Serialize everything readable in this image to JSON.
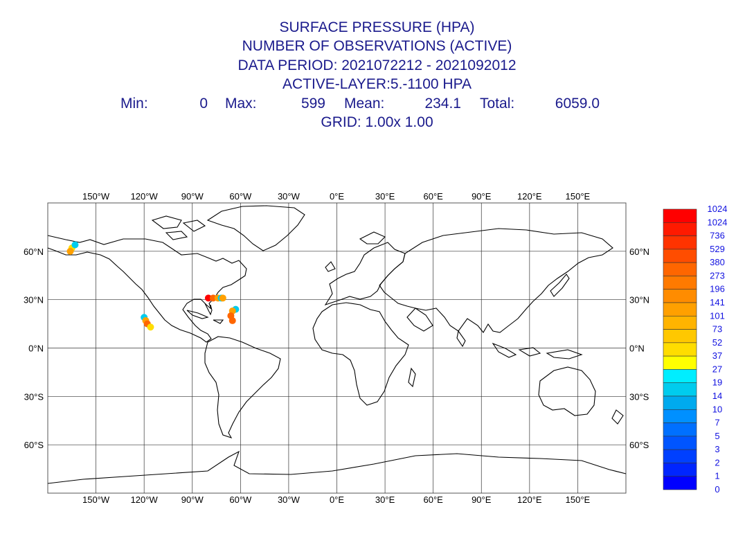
{
  "title": {
    "line1": "SURFACE PRESSURE (HPA)",
    "line2": "NUMBER OF OBSERVATIONS (ACTIVE)",
    "line3": "DATA PERIOD: 2021072212 - 2021092012",
    "line4": "ACTIVE-LAYER:5.-1100 HPA",
    "grid": "GRID:  1.00x  1.00"
  },
  "stats": {
    "min_label": "Min:",
    "min_value": "0",
    "max_label": "Max:",
    "max_value": "599",
    "mean_label": "Mean:",
    "mean_value": "234.1",
    "total_label": "Total:",
    "total_value": "6059.0"
  },
  "map": {
    "lon_labels": [
      "150°W",
      "120°W",
      "90°W",
      "60°W",
      "30°W",
      "0°E",
      "30°E",
      "60°E",
      "90°E",
      "120°E",
      "150°E"
    ],
    "lon_values": [
      -150,
      -120,
      -90,
      -60,
      -30,
      0,
      30,
      60,
      90,
      120,
      150
    ],
    "lat_labels": [
      "60°N",
      "30°N",
      "0°N",
      "30°S",
      "60°S"
    ],
    "lat_values": [
      60,
      30,
      0,
      -30,
      -60
    ],
    "lon_range": [
      -180,
      180
    ],
    "lat_range": [
      -90,
      90
    ],
    "grid": true
  },
  "colorbar": {
    "labels": [
      "1024",
      "1024",
      "736",
      "529",
      "380",
      "273",
      "196",
      "141",
      "101",
      "73",
      "52",
      "37",
      "27",
      "19",
      "14",
      "10",
      "7",
      "5",
      "3",
      "2",
      "1",
      "0"
    ],
    "colors": [
      "#ff0000",
      "#ff1a00",
      "#ff3300",
      "#ff4d00",
      "#ff6600",
      "#ff7a00",
      "#ff8c00",
      "#ffa000",
      "#ffb400",
      "#ffc800",
      "#ffdd00",
      "#ffff00",
      "#00eeff",
      "#00ccee",
      "#00aaee",
      "#0090ff",
      "#0070ff",
      "#0055ff",
      "#0040ff",
      "#0025ff",
      "#0000ff"
    ]
  },
  "observations": [
    {
      "lon": -165,
      "lat": 62,
      "color": "#ffdd00"
    },
    {
      "lon": -163,
      "lat": 64,
      "color": "#00ccee"
    },
    {
      "lon": -166,
      "lat": 60,
      "color": "#ffa000"
    },
    {
      "lon": -120,
      "lat": 19,
      "color": "#00ccee"
    },
    {
      "lon": -119,
      "lat": 17,
      "color": "#ffa000"
    },
    {
      "lon": -118,
      "lat": 15,
      "color": "#ff6600"
    },
    {
      "lon": -116,
      "lat": 13,
      "color": "#ffdd00"
    },
    {
      "lon": -80,
      "lat": 31,
      "color": "#ff0000"
    },
    {
      "lon": -77,
      "lat": 31,
      "color": "#ff6600"
    },
    {
      "lon": -74,
      "lat": 31,
      "color": "#ffa000"
    },
    {
      "lon": -72,
      "lat": 31,
      "color": "#00ccee"
    },
    {
      "lon": -71,
      "lat": 31,
      "color": "#ffa000"
    },
    {
      "lon": -63,
      "lat": 24,
      "color": "#00ccee"
    },
    {
      "lon": -65,
      "lat": 23,
      "color": "#ffa000"
    },
    {
      "lon": -66,
      "lat": 20,
      "color": "#ff6600"
    },
    {
      "lon": -65,
      "lat": 17,
      "color": "#ff6600"
    }
  ]
}
